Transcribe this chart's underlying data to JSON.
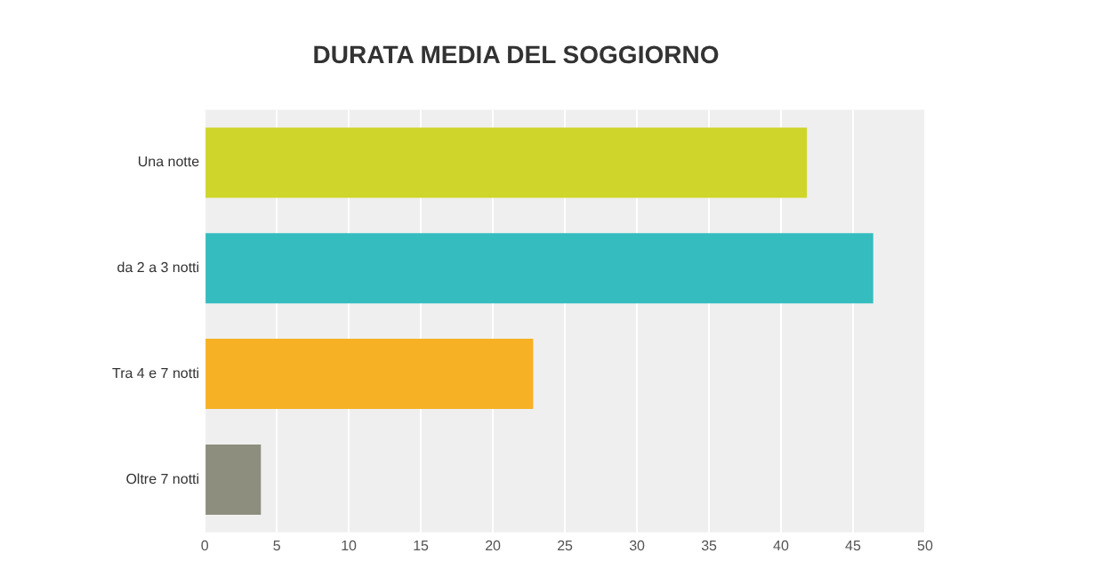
{
  "chart_data": {
    "type": "bar",
    "orientation": "horizontal",
    "title": "DURATA MEDIA DEL SOGGIORNO",
    "categories": [
      "Una notte",
      "da 2 a 3 notti",
      "Tra 4 e 7 notti",
      "Oltre 7 notti"
    ],
    "values": [
      41.8,
      46.4,
      22.8,
      3.9
    ],
    "colors": [
      "#cfd52a",
      "#35bcbf",
      "#f6b125",
      "#8e8e7f"
    ],
    "xlim": [
      0,
      50
    ],
    "xticks": [
      0,
      5,
      10,
      15,
      20,
      25,
      30,
      35,
      40,
      45,
      50
    ],
    "grid": "x",
    "legend": false
  }
}
